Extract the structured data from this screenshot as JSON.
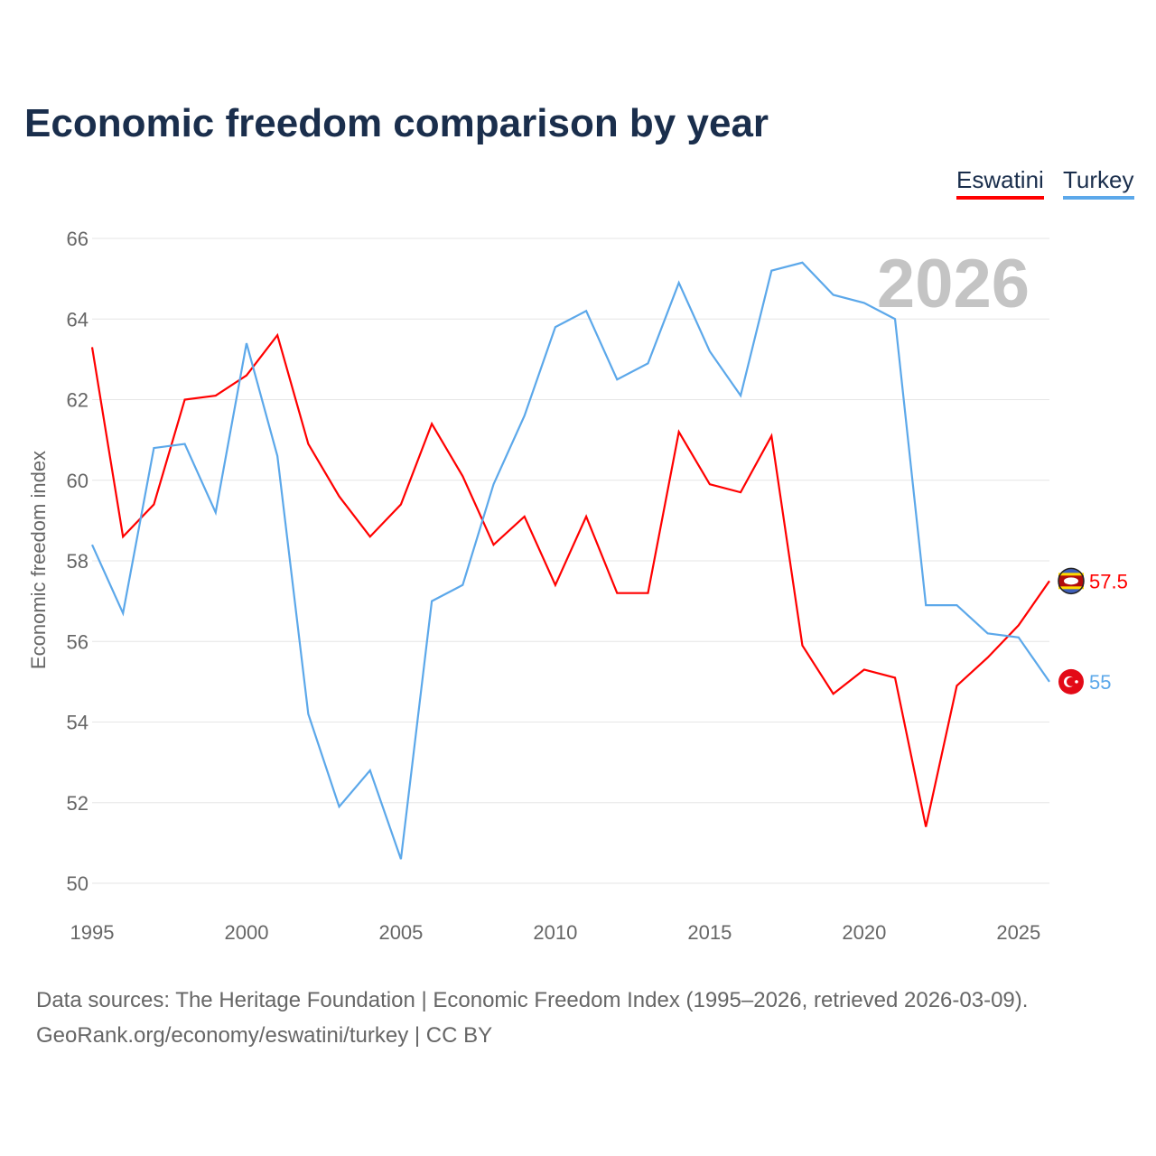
{
  "title": "Economic freedom comparison by year",
  "footer": {
    "line1": "Data sources: The Heritage Foundation | Economic Freedom Index (1995–2026, retrieved 2026-03-09).",
    "line2": "GeoRank.org/economy/eswatini/turkey | CC BY"
  },
  "chart_data": {
    "type": "line",
    "title": "Economic freedom comparison by year",
    "ylabel": "Economic freedom index",
    "xlabel": "",
    "ylim": [
      50,
      66
    ],
    "xlim": [
      1995,
      2026
    ],
    "yticks": [
      50,
      52,
      54,
      56,
      58,
      60,
      62,
      64,
      66
    ],
    "xticks": [
      1995,
      2000,
      2005,
      2010,
      2015,
      2020,
      2025
    ],
    "watermark_year": "2026",
    "legend_position": "top-right",
    "x": [
      1995,
      1996,
      1997,
      1998,
      1999,
      2000,
      2001,
      2002,
      2003,
      2004,
      2005,
      2006,
      2007,
      2008,
      2009,
      2010,
      2011,
      2012,
      2013,
      2014,
      2015,
      2016,
      2017,
      2018,
      2019,
      2020,
      2021,
      2022,
      2023,
      2024,
      2025,
      2026
    ],
    "series": [
      {
        "name": "Eswatini",
        "color": "#ff0000",
        "end_label": "57.5",
        "icon": "eswatini-flag-icon",
        "values": [
          63.3,
          58.6,
          59.4,
          62.0,
          62.1,
          62.6,
          63.6,
          60.9,
          59.6,
          58.6,
          59.4,
          61.4,
          60.1,
          58.4,
          59.1,
          57.4,
          59.1,
          57.2,
          57.2,
          61.2,
          59.9,
          59.7,
          61.1,
          55.9,
          54.7,
          55.3,
          55.1,
          51.4,
          54.9,
          55.6,
          56.4,
          57.5
        ]
      },
      {
        "name": "Turkey",
        "color": "#5ca8ea",
        "end_label": "55",
        "icon": "turkey-flag-icon",
        "values": [
          58.4,
          56.7,
          60.8,
          60.9,
          59.2,
          63.4,
          60.6,
          54.2,
          51.9,
          52.8,
          50.6,
          57.0,
          57.4,
          59.9,
          61.6,
          63.8,
          64.2,
          62.5,
          62.9,
          64.9,
          63.2,
          62.1,
          65.2,
          65.4,
          64.6,
          64.4,
          64.0,
          56.9,
          56.9,
          56.2,
          56.1,
          55.0
        ]
      }
    ]
  }
}
